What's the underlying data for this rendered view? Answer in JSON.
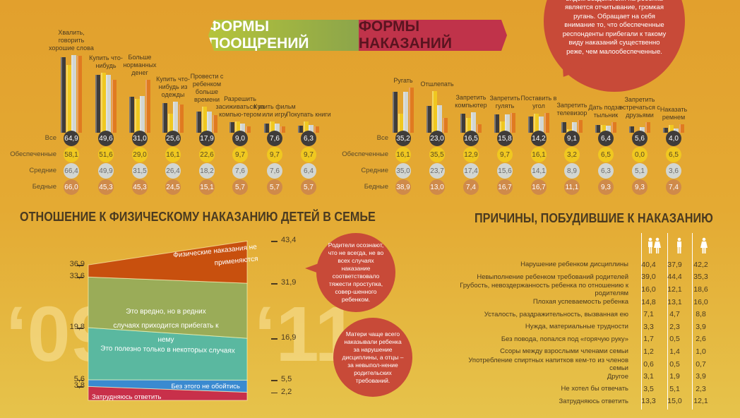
{
  "header": {
    "rewards": "ФОРМЫ ПООЩРЕНИЙ",
    "punishments": "ФОРМЫ НАКАЗАНИЙ"
  },
  "bubble_top": "видом воздействия на ребенка является отчитывание, громкая ругань. Обращает на себя внимание то, что обеспеченные респонденты прибегали к такому виду наказаний существенно реже, чем малообеспеченные.",
  "colors": {
    "Все": "#3f3c3a",
    "Обеспеченные": "#f0c820",
    "Средние": "#d2d6d2",
    "Бедные": "#e07a20",
    "banner_green": "#9cb342",
    "banner_red": "#c0334a",
    "bubble": "#c84a38"
  },
  "chart_data": [
    {
      "type": "bar",
      "title": "ФОРМЫ ПООЩРЕНИЙ",
      "series_names": [
        "Все",
        "Обеспеченные",
        "Средние",
        "Бедные"
      ],
      "categories": [
        "Хвалить, говорить хорошие слова",
        "Купить что-нибудь",
        "Больше норманных денег",
        "Купить что-нибудь из одежды",
        "Провести с ребенком больше времени",
        "Разрешить засиживаться за компью-тером",
        "Купить фильм или игру",
        "Покупать книги"
      ],
      "series": [
        {
          "name": "Все",
          "values": [
            "64,9",
            "49,6",
            "31,0",
            "25,6",
            "17,9",
            "9,0",
            "7,6",
            "6,3"
          ]
        },
        {
          "name": "Обеспеченные",
          "values": [
            "58,1",
            "51,6",
            "29,0",
            "16,1",
            "22,6",
            "9,7",
            "9,7",
            "9,7"
          ]
        },
        {
          "name": "Средние",
          "values": [
            "66,4",
            "49,9",
            "31,5",
            "26,4",
            "18,2",
            "7,6",
            "7,6",
            "6,4"
          ]
        },
        {
          "name": "Бедные",
          "values": [
            "66,0",
            "45,3",
            "45,3",
            "24,5",
            "15,1",
            "5,7",
            "5,7",
            "5,7"
          ]
        }
      ]
    },
    {
      "type": "bar",
      "title": "ФОРМЫ НАКАЗАНИЙ",
      "series_names": [
        "Все",
        "Обеспеченные",
        "Средние",
        "Бедные"
      ],
      "categories": [
        "Ругать",
        "Отшлепать",
        "Запретить компьютер",
        "Запретить гулять",
        "Поставить в угол",
        "Запретить телевизор",
        "Дать подза-тыльник",
        "Запретить встречаться с друзьями",
        "Наказать ремнем"
      ],
      "series": [
        {
          "name": "Все",
          "values": [
            "35,2",
            "23,0",
            "16,5",
            "15,8",
            "14,2",
            "9,1",
            "6,4",
            "5,6",
            "4,0"
          ]
        },
        {
          "name": "Обеспеченные",
          "values": [
            "16,1",
            "35,5",
            "12,9",
            "9,7",
            "16,1",
            "3,2",
            "6,5",
            "0,0",
            "6,5"
          ]
        },
        {
          "name": "Средние",
          "values": [
            "35,0",
            "23,7",
            "17,4",
            "15,6",
            "14,1",
            "8,9",
            "6,3",
            "5,1",
            "3,6"
          ]
        },
        {
          "name": "Бедные",
          "values": [
            "38,9",
            "13,0",
            "7,4",
            "16,7",
            "16,7",
            "11,1",
            "9,3",
            "9,3",
            "7,4"
          ]
        }
      ]
    },
    {
      "type": "area",
      "title": "ОТНОШЕНИЕ К ФИЗИЧЕСКОМУ НАКАЗАНИЮ ДЕТЕЙ В СЕМЬЕ",
      "x": [
        "‘09",
        "‘11"
      ],
      "ticks_left": [
        "36,9",
        "33,6",
        "19,8",
        "5,6",
        "3,8"
      ],
      "ticks_right": [
        "43,4",
        "31,9",
        "16,9",
        "5,5",
        "2,2"
      ],
      "layers": [
        {
          "label": "Затрудняюсь ответить",
          "from": [
            0,
            0
          ],
          "to": [
            3.8,
            2.2
          ],
          "color": "#c8304a"
        },
        {
          "label": "Без этого не обойтись",
          "from": [
            3.8,
            2.2
          ],
          "to": [
            5.6,
            5.5
          ],
          "color": "#3a8ad0"
        },
        {
          "label": "Это полезно только в некоторых случаях",
          "from": [
            5.6,
            5.5
          ],
          "to": [
            19.8,
            16.9
          ],
          "color": "#5ab8a0"
        },
        {
          "label": "Это вредно, но в редних случаях приходится прибегать к нему",
          "from": [
            19.8,
            16.9
          ],
          "to": [
            33.6,
            31.9
          ],
          "color": "#9aac58"
        },
        {
          "label": "Физические наказания не применяются",
          "from": [
            33.6,
            31.9
          ],
          "to": [
            36.9,
            43.4
          ],
          "color": "#c8500e"
        }
      ]
    },
    {
      "type": "table",
      "title": "ПРИЧИНЫ, ПОБУДИВШИЕ К НАКАЗАНИЮ",
      "columns": [
        "all-parents-icon",
        "father-icon",
        "mother-icon"
      ],
      "rows": [
        [
          "Нарушение ребенком дисциплины",
          "40,4",
          "37,9",
          "42,2"
        ],
        [
          "Невыполнение ребенком требований родителей",
          "39,0",
          "44,4",
          "35,3"
        ],
        [
          "Грубость, невоздержанность ребенка по отношению к родителям",
          "16,0",
          "12,1",
          "18,6"
        ],
        [
          "Плохая успеваемость ребенка",
          "14,8",
          "13,1",
          "16,0"
        ],
        [
          "Усталость, раздражительность, вызванная ею",
          "7,1",
          "4,7",
          "8,8"
        ],
        [
          "Нужда, материальные трудности",
          "3,3",
          "2,3",
          "3,9"
        ],
        [
          "Без повода, попался под «горячую руку»",
          "1,7",
          "0,5",
          "2,6"
        ],
        [
          "Ссоры между взрослыми членами семьи",
          "1,2",
          "1,4",
          "1,0"
        ],
        [
          "Употребление спиртных напитков кем-то из членов семьи",
          "0,6",
          "0,5",
          "0,7"
        ],
        [
          "Другое",
          "3,1",
          "1,9",
          "3,9"
        ],
        [
          "Не хотел бы отвечать",
          "3,5",
          "5,1",
          "2,3"
        ],
        [
          "Затрудняюсь ответить",
          "13,3",
          "15,0",
          "12,1"
        ]
      ]
    }
  ],
  "bubble_mid": "Родители осознают, что не всегда, не во всех случаях наказание соответствовало тяжести проступка, совер-шенного ребенком.",
  "bubble_low": "Матери чаще всего наказывали ребенка за нарушение дисциплины, а отцы – за невыпол-нение родительских требований."
}
